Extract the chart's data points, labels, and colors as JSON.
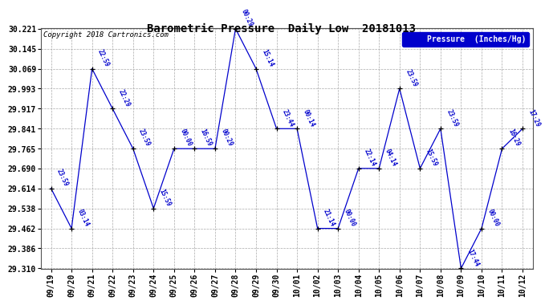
{
  "title": "Barometric Pressure  Daily Low  20181013",
  "ylabel": "Pressure  (Inches/Hg)",
  "copyright": "Copyright 2018 Cartronics.com",
  "background_color": "#ffffff",
  "line_color": "#0000cc",
  "ylim_min": 29.31,
  "ylim_max": 30.221,
  "yticks": [
    29.31,
    29.386,
    29.462,
    29.538,
    29.614,
    29.69,
    29.765,
    29.841,
    29.917,
    29.993,
    30.069,
    30.145,
    30.221
  ],
  "dates": [
    "09/19",
    "09/20",
    "09/21",
    "09/22",
    "09/23",
    "09/24",
    "09/25",
    "09/26",
    "09/27",
    "09/28",
    "09/29",
    "09/30",
    "10/01",
    "10/02",
    "10/03",
    "10/04",
    "10/05",
    "10/06",
    "10/07",
    "10/08",
    "10/09",
    "10/10",
    "10/11",
    "10/12"
  ],
  "values": [
    29.614,
    29.462,
    30.069,
    29.917,
    29.765,
    29.538,
    29.765,
    29.765,
    29.765,
    30.221,
    30.069,
    29.841,
    29.841,
    29.462,
    29.462,
    29.69,
    29.69,
    29.993,
    29.69,
    29.841,
    29.31,
    29.462,
    29.765,
    29.841
  ],
  "annotations": [
    "23:59",
    "03:14",
    "22:59",
    "22:29",
    "23:59",
    "15:59",
    "00:00",
    "16:59",
    "00:29",
    "00:29",
    "15:14",
    "23:44",
    "00:14",
    "21:14",
    "00:00",
    "22:14",
    "04:14",
    "23:59",
    "15:59",
    "23:59",
    "17:44",
    "00:00",
    "16:29",
    "17:29"
  ],
  "figwidth": 6.9,
  "figheight": 3.75,
  "dpi": 100
}
